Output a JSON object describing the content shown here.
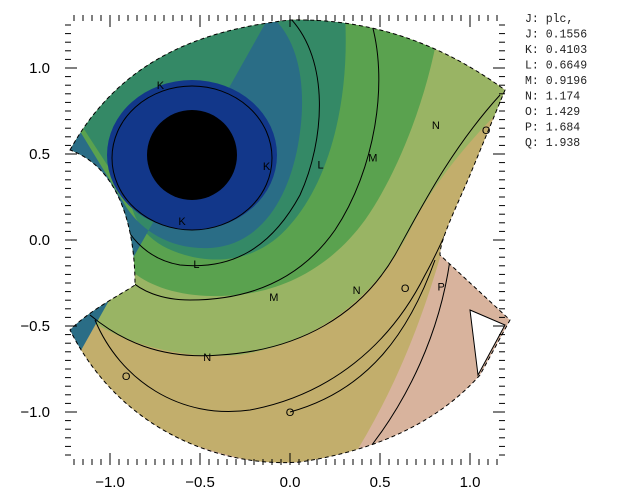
{
  "chart_data": {
    "type": "contour",
    "title": "",
    "xlabel": "",
    "ylabel": "",
    "xlim": [
      -1.2,
      1.2
    ],
    "ylim": [
      -1.25,
      1.25
    ],
    "x_ticks": [
      -1.0,
      -0.5,
      0.0,
      0.5,
      1.0
    ],
    "x_tick_labels": [
      "−1.0",
      "−0.5",
      "0.0",
      "0.5",
      "1.0"
    ],
    "y_ticks": [
      1.0,
      0.5,
      0.0,
      -0.5,
      -1.0
    ],
    "y_tick_labels": [
      "1.0",
      "0.5",
      "0.0",
      "−0.5",
      "−1.0"
    ],
    "grid": false,
    "legend_position": "top-right",
    "legend_header": "J: plc,",
    "levels": [
      {
        "key": "J",
        "value": 0.1556,
        "text": "J: 0.1556"
      },
      {
        "key": "K",
        "value": 0.4103,
        "text": "K: 0.4103"
      },
      {
        "key": "L",
        "value": 0.6649,
        "text": "L: 0.6649"
      },
      {
        "key": "M",
        "value": 0.9196,
        "text": "M: 0.9196"
      },
      {
        "key": "N",
        "value": 1.174,
        "text": "N: 1.174"
      },
      {
        "key": "O",
        "value": 1.429,
        "text": "O: 1.429"
      },
      {
        "key": "P",
        "value": 1.684,
        "text": "P: 1.684"
      },
      {
        "key": "Q",
        "value": 1.938,
        "text": "Q: 1.938"
      }
    ],
    "fill_colors": [
      "#000000",
      "#12378a",
      "#2a6d86",
      "#348966",
      "#5aa24f",
      "#99b464",
      "#c2ae6c",
      "#d8b39d"
    ],
    "contour_labels": [
      {
        "text": "K",
        "x": -0.72,
        "y": 0.9
      },
      {
        "text": "K",
        "x": -0.13,
        "y": 0.43
      },
      {
        "text": "K",
        "x": -0.6,
        "y": 0.11
      },
      {
        "text": "L",
        "x": 0.17,
        "y": 0.44
      },
      {
        "text": "L",
        "x": -0.52,
        "y": -0.14
      },
      {
        "text": "M",
        "x": 0.46,
        "y": 0.48
      },
      {
        "text": "M",
        "x": -0.09,
        "y": -0.33
      },
      {
        "text": "N",
        "x": 0.81,
        "y": 0.67
      },
      {
        "text": "N",
        "x": 0.37,
        "y": -0.29
      },
      {
        "text": "N",
        "x": -0.46,
        "y": -0.68
      },
      {
        "text": "O",
        "x": 1.09,
        "y": 0.64
      },
      {
        "text": "O",
        "x": 0.64,
        "y": -0.28
      },
      {
        "text": "O",
        "x": -0.91,
        "y": -0.79
      },
      {
        "text": "O",
        "x": 0.0,
        "y": -1.0
      },
      {
        "text": "P",
        "x": 0.84,
        "y": -0.27
      }
    ]
  }
}
